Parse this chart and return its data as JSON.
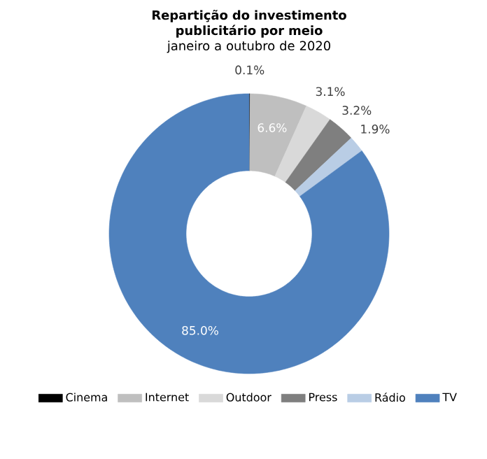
{
  "chart_data": {
    "type": "donut",
    "title": "Repartição do investimento publicitário por meio",
    "subtitle": "janeiro a outubro de 2020",
    "categories": [
      "Cinema",
      "Internet",
      "Outdoor",
      "Press",
      "Rádio",
      "TV"
    ],
    "values": [
      0.1,
      6.6,
      3.1,
      3.2,
      1.9,
      85.0
    ],
    "value_labels": [
      "0.1%",
      "6.6%",
      "3.1%",
      "3.2%",
      "1.9%",
      "85.0%"
    ],
    "colors": [
      "#000000",
      "#bfbfbf",
      "#d9d9d9",
      "#7f7f7f",
      "#b9cde5",
      "#4f81bd"
    ],
    "legend": "bottom"
  }
}
